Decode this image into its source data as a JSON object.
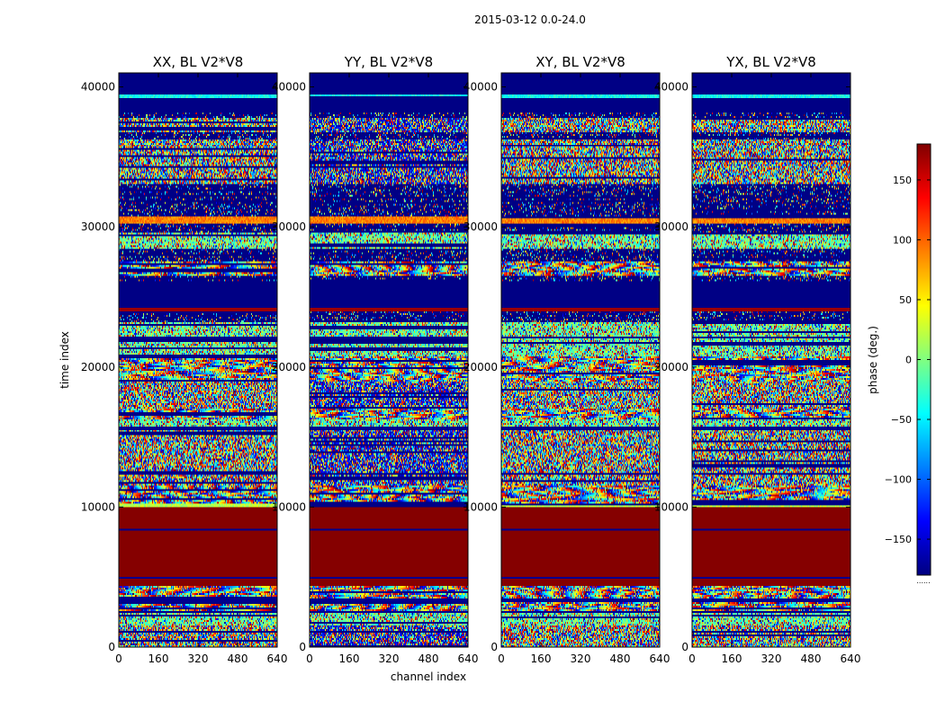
{
  "figure_title": "2015-03-12 0.0-24.0",
  "chart_data": {
    "type": "heatmap",
    "x": {
      "label": "channel index",
      "range": [
        0,
        640
      ],
      "ticks": [
        0,
        160,
        320,
        480,
        640
      ]
    },
    "y": {
      "label": "time index",
      "range": [
        0,
        41000
      ],
      "ticks": [
        0,
        10000,
        20000,
        30000,
        40000
      ]
    },
    "colorbar": {
      "label": "phase (deg.)",
      "range": [
        -180,
        180
      ],
      "ticks": [
        -150,
        -100,
        -50,
        0,
        50,
        100,
        150
      ],
      "tick_labels": [
        "−150",
        "−100",
        "−50",
        "0",
        "50",
        "100",
        "150"
      ],
      "colormap": "jet",
      "under_label": "......"
    },
    "panels": [
      {
        "title": "XX, BL V2*V8",
        "seed": 11,
        "noise_pol": 0
      },
      {
        "title": "YY, BL V2*V8",
        "seed": 23,
        "noise_pol": 1
      },
      {
        "title": "XY, BL V2*V8",
        "seed": 37,
        "noise_pol": 0
      },
      {
        "title": "YX, BL V2*V8",
        "seed": 53,
        "noise_pol": 0
      }
    ],
    "time_bands": [
      {
        "from": 0,
        "to": 300,
        "kind": "noise"
      },
      {
        "from": 300,
        "to": 1100,
        "kind": "noise"
      },
      {
        "from": 1100,
        "to": 1500,
        "kind": "noise"
      },
      {
        "from": 1500,
        "to": 1600,
        "kind": "flat",
        "phase": -175
      },
      {
        "from": 1600,
        "to": 2400,
        "kind": "mixed"
      },
      {
        "from": 2400,
        "to": 2600,
        "kind": "flat",
        "phase": -175
      },
      {
        "from": 2600,
        "to": 3200,
        "kind": "fringe"
      },
      {
        "from": 3200,
        "to": 3400,
        "kind": "flat",
        "phase": -175
      },
      {
        "from": 3400,
        "to": 4400,
        "kind": "fringe"
      },
      {
        "from": 4400,
        "to": 4900,
        "kind": "flat",
        "phase": 178
      },
      {
        "from": 4900,
        "to": 5000,
        "kind": "flat",
        "phase": -175
      },
      {
        "from": 5000,
        "to": 8300,
        "kind": "flat",
        "phase": 178
      },
      {
        "from": 8300,
        "to": 8400,
        "kind": "flat",
        "phase": -175
      },
      {
        "from": 8400,
        "to": 9950,
        "kind": "flat",
        "phase": 178
      },
      {
        "from": 9950,
        "to": 10300,
        "kind": "stripe",
        "phase": 20
      },
      {
        "from": 10300,
        "to": 11500,
        "kind": "fringe"
      },
      {
        "from": 11500,
        "to": 12300,
        "kind": "noise"
      },
      {
        "from": 12300,
        "to": 12400,
        "kind": "flat",
        "phase": -175
      },
      {
        "from": 12400,
        "to": 15500,
        "kind": "noise"
      },
      {
        "from": 15500,
        "to": 15700,
        "kind": "flat",
        "phase": -175
      },
      {
        "from": 15700,
        "to": 16300,
        "kind": "mixed"
      },
      {
        "from": 16300,
        "to": 17000,
        "kind": "fringe"
      },
      {
        "from": 17000,
        "to": 17100,
        "kind": "flat",
        "phase": -175
      },
      {
        "from": 17100,
        "to": 19000,
        "kind": "noise"
      },
      {
        "from": 19000,
        "to": 20800,
        "kind": "fringe"
      },
      {
        "from": 20800,
        "to": 22000,
        "kind": "mixed"
      },
      {
        "from": 22000,
        "to": 22200,
        "kind": "flat",
        "phase": -175
      },
      {
        "from": 22200,
        "to": 23200,
        "kind": "mixed"
      },
      {
        "from": 23200,
        "to": 24000,
        "kind": "sparse"
      },
      {
        "from": 24000,
        "to": 24200,
        "kind": "flat",
        "phase": 170
      },
      {
        "from": 24200,
        "to": 26200,
        "kind": "flat",
        "phase": -178
      },
      {
        "from": 26200,
        "to": 26500,
        "kind": "sparse"
      },
      {
        "from": 26500,
        "to": 27600,
        "kind": "fringe"
      },
      {
        "from": 27600,
        "to": 28400,
        "kind": "sparse"
      },
      {
        "from": 28400,
        "to": 29600,
        "kind": "mixed"
      },
      {
        "from": 29600,
        "to": 30200,
        "kind": "sparse"
      },
      {
        "from": 30200,
        "to": 30800,
        "kind": "stripe",
        "phase": 90
      },
      {
        "from": 30800,
        "to": 33000,
        "kind": "sparse"
      },
      {
        "from": 33000,
        "to": 36200,
        "kind": "noise"
      },
      {
        "from": 36200,
        "to": 36800,
        "kind": "sparse"
      },
      {
        "from": 36800,
        "to": 37800,
        "kind": "noise"
      },
      {
        "from": 37800,
        "to": 38200,
        "kind": "sparse"
      },
      {
        "from": 38200,
        "to": 39200,
        "kind": "flat",
        "phase": -178
      },
      {
        "from": 39200,
        "to": 39400,
        "kind": "stripe",
        "phase": -40
      },
      {
        "from": 39400,
        "to": 41000,
        "kind": "flat",
        "phase": -178
      }
    ]
  }
}
